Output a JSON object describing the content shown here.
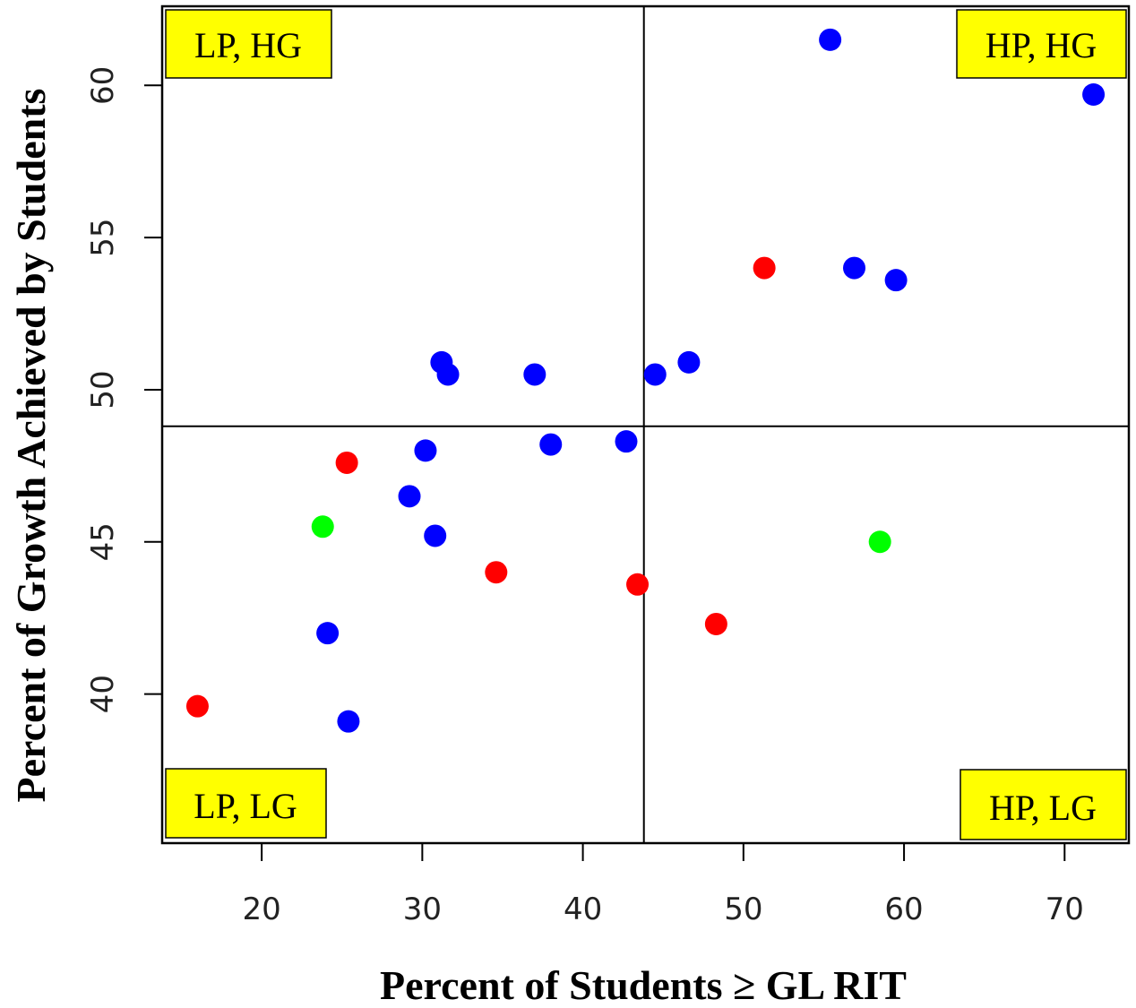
{
  "chart_data": {
    "type": "scatter",
    "title": "",
    "xlabel": "Percent of Students ≥ GL RIT",
    "ylabel": "Percent of Growth Achieved by Students",
    "xlim": [
      13.8,
      74
    ],
    "ylim": [
      35.1,
      62.6
    ],
    "x_ticks": [
      "20",
      "30",
      "40",
      "50",
      "60",
      "70"
    ],
    "y_ticks": [
      "40",
      "45",
      "50",
      "55",
      "60"
    ],
    "reference_lines": {
      "x": 43.8,
      "y": 48.8
    },
    "quadrant_labels": [
      {
        "position": "top-left",
        "text": "LP, HG"
      },
      {
        "position": "top-right",
        "text": "HP, HG"
      },
      {
        "position": "bottom-left",
        "text": "LP, LG"
      },
      {
        "position": "bottom-right",
        "text": "HP, LG"
      }
    ],
    "grid": false,
    "legend": "none",
    "series": [
      {
        "color": "#0000ff",
        "points": [
          {
            "x": 55.4,
            "y": 61.5
          },
          {
            "x": 71.8,
            "y": 59.7
          },
          {
            "x": 56.9,
            "y": 54.0
          },
          {
            "x": 59.5,
            "y": 53.6
          },
          {
            "x": 31.2,
            "y": 50.9
          },
          {
            "x": 31.6,
            "y": 50.5
          },
          {
            "x": 37.0,
            "y": 50.5
          },
          {
            "x": 44.5,
            "y": 50.5
          },
          {
            "x": 46.6,
            "y": 50.9
          },
          {
            "x": 30.2,
            "y": 48.0
          },
          {
            "x": 38.0,
            "y": 48.2
          },
          {
            "x": 42.7,
            "y": 48.3
          },
          {
            "x": 29.2,
            "y": 46.5
          },
          {
            "x": 30.8,
            "y": 45.2
          },
          {
            "x": 24.1,
            "y": 42.0
          },
          {
            "x": 25.4,
            "y": 39.1
          }
        ]
      },
      {
        "color": "#ff0000",
        "points": [
          {
            "x": 51.3,
            "y": 54.0
          },
          {
            "x": 25.3,
            "y": 47.6
          },
          {
            "x": 34.6,
            "y": 44.0
          },
          {
            "x": 43.4,
            "y": 43.6
          },
          {
            "x": 48.3,
            "y": 42.3
          },
          {
            "x": 16.0,
            "y": 39.6
          }
        ]
      },
      {
        "color": "#00ff00",
        "points": [
          {
            "x": 23.8,
            "y": 45.5
          },
          {
            "x": 58.5,
            "y": 45.0
          }
        ]
      }
    ]
  },
  "colors": {
    "quadrant_label_bg": "#ffff00",
    "axis": "#000000"
  }
}
